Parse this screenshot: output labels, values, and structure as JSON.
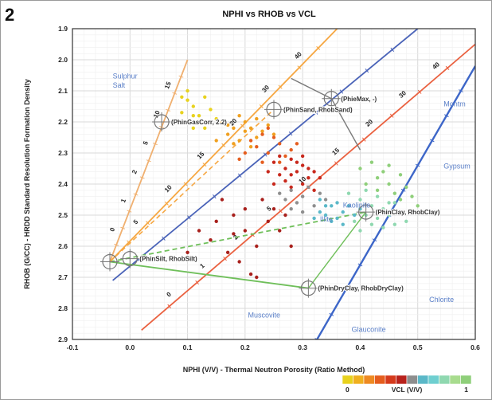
{
  "panel_label": "2",
  "chart_data": {
    "type": "scatter",
    "title": "NPHI vs RHOB vs VCL",
    "xlabel": "NPHI (V/V) - Thermal Neutron Porosity (Ratio Method)",
    "ylabel": "RHOB (G/CC) - HRDD Standard Resolution Formation Density",
    "xlim": [
      -0.1,
      0.6
    ],
    "ylim": [
      2.9,
      1.9
    ],
    "y_inverted": true,
    "grid": true,
    "xticks": [
      "-0.1",
      "0.0",
      "0.1",
      "0.2",
      "0.3",
      "0.4",
      "0.5",
      "0.6"
    ],
    "yticks": [
      "1.9",
      "2.0",
      "2.1",
      "2.2",
      "2.3",
      "2.4",
      "2.5",
      "2.6",
      "2.7",
      "2.8",
      "2.9"
    ],
    "colorbar": {
      "label": "VCL (V/V)",
      "min_label": "0",
      "max_label": "1",
      "colors": [
        "#e8d21e",
        "#f0b020",
        "#ee8a22",
        "#e55d1e",
        "#d53a1c",
        "#b8221c",
        "#8e8e8e",
        "#5ab8c8",
        "#6fcfd0",
        "#8fd8b0",
        "#a8dc8e",
        "#8fcf7a"
      ]
    },
    "mineral_labels": [
      {
        "text": "Sulphur",
        "x": -0.03,
        "y": 2.06
      },
      {
        "text": "Salt",
        "x": -0.03,
        "y": 2.09
      },
      {
        "text": "Montm",
        "x": 0.545,
        "y": 2.15
      },
      {
        "text": "Gypsum",
        "x": 0.545,
        "y": 2.35
      },
      {
        "text": "Kaolinite",
        "x": 0.37,
        "y": 2.475
      },
      {
        "text": "Illite",
        "x": 0.33,
        "y": 2.52
      },
      {
        "text": "Chlorite",
        "x": 0.52,
        "y": 2.78
      },
      {
        "text": "Muscovite",
        "x": 0.205,
        "y": 2.83
      },
      {
        "text": "Glauconite",
        "x": 0.385,
        "y": 2.875
      }
    ],
    "points_labels": [
      {
        "text": "(PhinGasCorr, 2.2)",
        "x": 0.055,
        "y": 2.2
      },
      {
        "text": "(PhieMax, -)",
        "x": 0.35,
        "y": 2.125
      },
      {
        "text": "(PhinSand, RhobSand)",
        "x": 0.25,
        "y": 2.16
      },
      {
        "text": "(PhinClay, RhobClay)",
        "x": 0.41,
        "y": 2.49
      },
      {
        "text": "(PhinSilt, RhobSilt)",
        "x": 0.0,
        "y": 2.64
      },
      {
        "text": "(PhinDryClay, RhobDryClay)",
        "x": 0.31,
        "y": 2.735
      }
    ],
    "reference_lines": [
      {
        "name": "gas",
        "color": "#f0b070",
        "x": [
          -0.035,
          0.1
        ],
        "y": [
          2.65,
          2.0
        ],
        "ticks": [
          "0",
          "1",
          "2",
          "5",
          "10",
          "15"
        ]
      },
      {
        "name": "sand",
        "color": "#f6a742",
        "x": [
          -0.035,
          0.36
        ],
        "y": [
          2.65,
          1.9
        ],
        "ticks": [
          "5",
          "10",
          "15",
          "20",
          "30",
          "40"
        ]
      },
      {
        "name": "limestone",
        "color": "#4a63b8",
        "x": [
          -0.03,
          0.5
        ],
        "y": [
          2.71,
          1.9
        ],
        "ticks": []
      },
      {
        "name": "dolomite",
        "color": "#ea6140",
        "x": [
          0.02,
          0.6
        ],
        "y": [
          2.87,
          1.95
        ],
        "ticks": [
          "0",
          "1",
          "2",
          "5",
          "10",
          "15",
          "20",
          "30",
          "40"
        ]
      },
      {
        "name": "anhydrite",
        "color": "#3d66c8",
        "x": [
          0.3,
          0.6
        ],
        "y": [
          2.98,
          2.02
        ],
        "ticks": []
      }
    ],
    "series": [
      {
        "color": "#e8d21e",
        "points": [
          [
            0.09,
            2.12
          ],
          [
            0.1,
            2.1
          ],
          [
            0.11,
            2.15
          ],
          [
            0.12,
            2.18
          ],
          [
            0.1,
            2.2
          ],
          [
            0.13,
            2.12
          ],
          [
            0.11,
            2.22
          ],
          [
            0.14,
            2.16
          ],
          [
            0.09,
            2.17
          ],
          [
            0.12,
            2.2
          ],
          [
            0.15,
            2.19
          ],
          [
            0.1,
            2.13
          ],
          [
            0.13,
            2.22
          ],
          [
            0.11,
            2.18
          ]
        ]
      },
      {
        "color": "#f0a020",
        "points": [
          [
            0.16,
            2.2
          ],
          [
            0.18,
            2.22
          ],
          [
            0.17,
            2.24
          ],
          [
            0.2,
            2.23
          ],
          [
            0.19,
            2.26
          ],
          [
            0.21,
            2.22
          ],
          [
            0.22,
            2.25
          ],
          [
            0.18,
            2.27
          ],
          [
            0.2,
            2.2
          ],
          [
            0.23,
            2.23
          ],
          [
            0.15,
            2.26
          ],
          [
            0.24,
            2.21
          ],
          [
            0.19,
            2.18
          ],
          [
            0.21,
            2.28
          ],
          [
            0.17,
            2.21
          ],
          [
            0.25,
            2.24
          ],
          [
            0.22,
            2.19
          ]
        ]
      },
      {
        "color": "#e55d1e",
        "points": [
          [
            0.22,
            2.28
          ],
          [
            0.24,
            2.3
          ],
          [
            0.26,
            2.27
          ],
          [
            0.2,
            2.3
          ],
          [
            0.27,
            2.31
          ],
          [
            0.23,
            2.33
          ],
          [
            0.25,
            2.25
          ],
          [
            0.21,
            2.26
          ],
          [
            0.28,
            2.29
          ],
          [
            0.19,
            2.32
          ],
          [
            0.26,
            2.33
          ],
          [
            0.24,
            2.22
          ],
          [
            0.29,
            2.27
          ],
          [
            0.23,
            2.24
          ]
        ]
      },
      {
        "color": "#c8281c",
        "points": [
          [
            0.25,
            2.33
          ],
          [
            0.27,
            2.35
          ],
          [
            0.28,
            2.32
          ],
          [
            0.26,
            2.37
          ],
          [
            0.29,
            2.36
          ],
          [
            0.3,
            2.34
          ],
          [
            0.31,
            2.38
          ],
          [
            0.27,
            2.39
          ],
          [
            0.28,
            2.41
          ],
          [
            0.32,
            2.36
          ],
          [
            0.24,
            2.36
          ],
          [
            0.3,
            2.4
          ],
          [
            0.33,
            2.38
          ],
          [
            0.26,
            2.31
          ],
          [
            0.29,
            2.33
          ],
          [
            0.31,
            2.35
          ],
          [
            0.28,
            2.37
          ],
          [
            0.25,
            2.4
          ],
          [
            0.3,
            2.31
          ],
          [
            0.32,
            2.42
          ]
        ]
      },
      {
        "color": "#a8201c",
        "points": [
          [
            0.16,
            2.45
          ],
          [
            0.18,
            2.5
          ],
          [
            0.2,
            2.55
          ],
          [
            0.14,
            2.58
          ],
          [
            0.22,
            2.6
          ],
          [
            0.17,
            2.62
          ],
          [
            0.2,
            2.48
          ],
          [
            0.24,
            2.52
          ],
          [
            0.12,
            2.55
          ],
          [
            0.19,
            2.65
          ],
          [
            0.23,
            2.45
          ],
          [
            0.21,
            2.69
          ],
          [
            0.26,
            2.55
          ],
          [
            0.15,
            2.52
          ],
          [
            0.28,
            2.6
          ],
          [
            0.1,
            2.62
          ],
          [
            0.25,
            2.48
          ],
          [
            0.18,
            2.56
          ],
          [
            0.22,
            2.7
          ],
          [
            0.27,
            2.5
          ]
        ]
      },
      {
        "color": "#8e8e8e",
        "points": [
          [
            0.28,
            2.42
          ],
          [
            0.3,
            2.44
          ],
          [
            0.31,
            2.41
          ],
          [
            0.29,
            2.46
          ],
          [
            0.33,
            2.43
          ],
          [
            0.27,
            2.45
          ],
          [
            0.32,
            2.47
          ],
          [
            0.3,
            2.49
          ],
          [
            0.26,
            2.43
          ],
          [
            0.34,
            2.45
          ],
          [
            0.28,
            2.48
          ]
        ]
      },
      {
        "color": "#5ab8c8",
        "points": [
          [
            0.33,
            2.45
          ],
          [
            0.35,
            2.47
          ],
          [
            0.34,
            2.5
          ],
          [
            0.36,
            2.46
          ],
          [
            0.37,
            2.49
          ],
          [
            0.35,
            2.52
          ],
          [
            0.33,
            2.49
          ],
          [
            0.38,
            2.47
          ],
          [
            0.36,
            2.51
          ],
          [
            0.39,
            2.5
          ],
          [
            0.34,
            2.47
          ],
          [
            0.37,
            2.53
          ],
          [
            0.32,
            2.51
          ],
          [
            0.4,
            2.48
          ]
        ]
      },
      {
        "color": "#8fd8b0",
        "points": [
          [
            0.38,
            2.43
          ],
          [
            0.4,
            2.45
          ],
          [
            0.42,
            2.47
          ],
          [
            0.41,
            2.5
          ],
          [
            0.43,
            2.44
          ],
          [
            0.44,
            2.48
          ],
          [
            0.39,
            2.52
          ],
          [
            0.45,
            2.5
          ],
          [
            0.42,
            2.53
          ],
          [
            0.46,
            2.46
          ],
          [
            0.4,
            2.55
          ],
          [
            0.47,
            2.49
          ],
          [
            0.43,
            2.51
          ],
          [
            0.44,
            2.54
          ],
          [
            0.41,
            2.42
          ],
          [
            0.48,
            2.52
          ],
          [
            0.45,
            2.46
          ],
          [
            0.46,
            2.53
          ]
        ]
      },
      {
        "color": "#8fcf7a",
        "points": [
          [
            0.4,
            2.35
          ],
          [
            0.43,
            2.38
          ],
          [
            0.45,
            2.4
          ],
          [
            0.42,
            2.33
          ],
          [
            0.47,
            2.37
          ],
          [
            0.44,
            2.36
          ],
          [
            0.46,
            2.43
          ],
          [
            0.48,
            2.41
          ],
          [
            0.41,
            2.4
          ],
          [
            0.49,
            2.44
          ],
          [
            0.43,
            2.42
          ],
          [
            0.45,
            2.34
          ],
          [
            0.5,
            2.47
          ],
          [
            0.47,
            2.45
          ]
        ]
      }
    ]
  }
}
